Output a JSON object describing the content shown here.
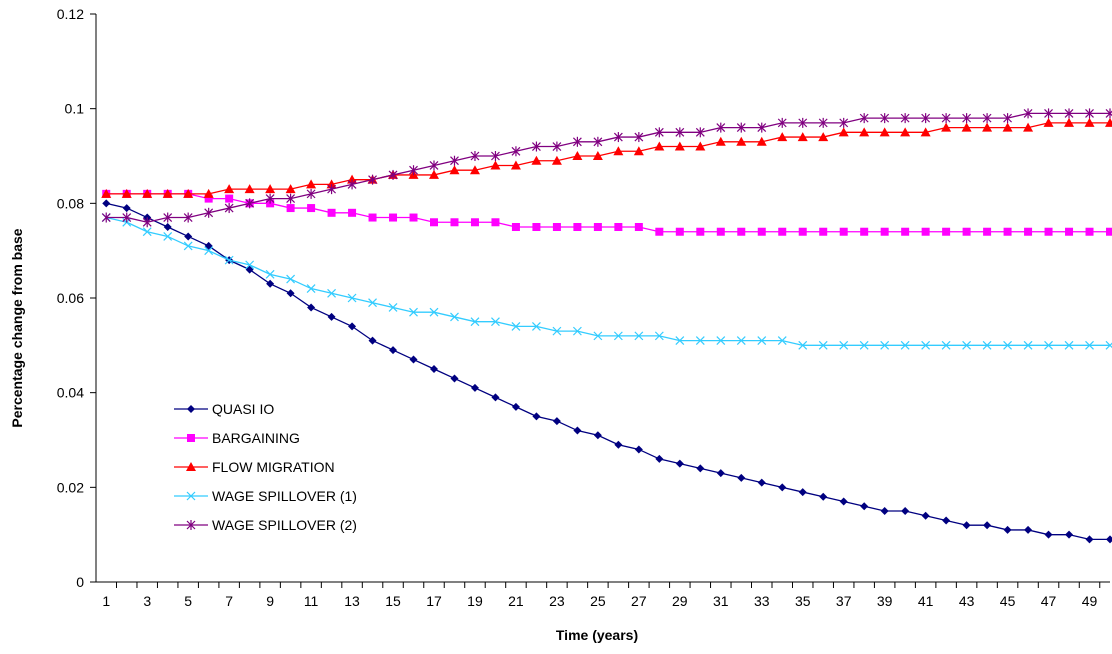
{
  "chart_data": {
    "type": "line",
    "title": "",
    "xlabel": "Time (years)",
    "ylabel": "Percentage change from base",
    "ylim": [
      0,
      0.12
    ],
    "yticks": [
      "0",
      "0.02",
      "0.04",
      "0.06",
      "0.08",
      "0.1",
      "0.12"
    ],
    "xlim": [
      1,
      50
    ],
    "xticks": [
      "1",
      "3",
      "5",
      "7",
      "9",
      "11",
      "13",
      "15",
      "17",
      "19",
      "21",
      "23",
      "25",
      "27",
      "29",
      "31",
      "33",
      "35",
      "37",
      "39",
      "41",
      "43",
      "45",
      "47",
      "49"
    ],
    "grid": false,
    "legend_position": "left-bottom",
    "x": [
      1,
      2,
      3,
      4,
      5,
      6,
      7,
      8,
      9,
      10,
      11,
      12,
      13,
      14,
      15,
      16,
      17,
      18,
      19,
      20,
      21,
      22,
      23,
      24,
      25,
      26,
      27,
      28,
      29,
      30,
      31,
      32,
      33,
      34,
      35,
      36,
      37,
      38,
      39,
      40,
      41,
      42,
      43,
      44,
      45,
      46,
      47,
      48,
      49,
      50
    ],
    "series": [
      {
        "name": "QUASI IO",
        "color": "#000080",
        "marker": "diamond",
        "values": [
          0.08,
          0.079,
          0.077,
          0.075,
          0.073,
          0.071,
          0.068,
          0.066,
          0.063,
          0.061,
          0.058,
          0.056,
          0.054,
          0.051,
          0.049,
          0.047,
          0.045,
          0.043,
          0.041,
          0.039,
          0.037,
          0.035,
          0.034,
          0.032,
          0.031,
          0.029,
          0.028,
          0.026,
          0.025,
          0.024,
          0.023,
          0.022,
          0.021,
          0.02,
          0.019,
          0.018,
          0.017,
          0.016,
          0.015,
          0.015,
          0.014,
          0.013,
          0.012,
          0.012,
          0.011,
          0.011,
          0.01,
          0.01,
          0.009,
          0.009
        ]
      },
      {
        "name": "BARGAINING",
        "color": "#ff00ff",
        "marker": "square",
        "values": [
          0.082,
          0.082,
          0.082,
          0.082,
          0.082,
          0.081,
          0.081,
          0.08,
          0.08,
          0.079,
          0.079,
          0.078,
          0.078,
          0.077,
          0.077,
          0.077,
          0.076,
          0.076,
          0.076,
          0.076,
          0.075,
          0.075,
          0.075,
          0.075,
          0.075,
          0.075,
          0.075,
          0.074,
          0.074,
          0.074,
          0.074,
          0.074,
          0.074,
          0.074,
          0.074,
          0.074,
          0.074,
          0.074,
          0.074,
          0.074,
          0.074,
          0.074,
          0.074,
          0.074,
          0.074,
          0.074,
          0.074,
          0.074,
          0.074,
          0.074
        ]
      },
      {
        "name": "FLOW MIGRATION",
        "color": "#ff0000",
        "marker": "triangle",
        "values": [
          0.082,
          0.082,
          0.082,
          0.082,
          0.082,
          0.082,
          0.083,
          0.083,
          0.083,
          0.083,
          0.084,
          0.084,
          0.085,
          0.085,
          0.086,
          0.086,
          0.086,
          0.087,
          0.087,
          0.088,
          0.088,
          0.089,
          0.089,
          0.09,
          0.09,
          0.091,
          0.091,
          0.092,
          0.092,
          0.092,
          0.093,
          0.093,
          0.093,
          0.094,
          0.094,
          0.094,
          0.095,
          0.095,
          0.095,
          0.095,
          0.095,
          0.096,
          0.096,
          0.096,
          0.096,
          0.096,
          0.097,
          0.097,
          0.097,
          0.097
        ]
      },
      {
        "name": "WAGE SPILLOVER (1)",
        "color": "#33ccff",
        "marker": "x",
        "values": [
          0.077,
          0.076,
          0.074,
          0.073,
          0.071,
          0.07,
          0.068,
          0.067,
          0.065,
          0.064,
          0.062,
          0.061,
          0.06,
          0.059,
          0.058,
          0.057,
          0.057,
          0.056,
          0.055,
          0.055,
          0.054,
          0.054,
          0.053,
          0.053,
          0.052,
          0.052,
          0.052,
          0.052,
          0.051,
          0.051,
          0.051,
          0.051,
          0.051,
          0.051,
          0.05,
          0.05,
          0.05,
          0.05,
          0.05,
          0.05,
          0.05,
          0.05,
          0.05,
          0.05,
          0.05,
          0.05,
          0.05,
          0.05,
          0.05,
          0.05
        ]
      },
      {
        "name": "WAGE SPILLOVER (2)",
        "color": "#800080",
        "marker": "star",
        "values": [
          0.077,
          0.077,
          0.076,
          0.077,
          0.077,
          0.078,
          0.079,
          0.08,
          0.081,
          0.081,
          0.082,
          0.083,
          0.084,
          0.085,
          0.086,
          0.087,
          0.088,
          0.089,
          0.09,
          0.09,
          0.091,
          0.092,
          0.092,
          0.093,
          0.093,
          0.094,
          0.094,
          0.095,
          0.095,
          0.095,
          0.096,
          0.096,
          0.096,
          0.097,
          0.097,
          0.097,
          0.097,
          0.098,
          0.098,
          0.098,
          0.098,
          0.098,
          0.098,
          0.098,
          0.098,
          0.099,
          0.099,
          0.099,
          0.099,
          0.099
        ]
      }
    ]
  }
}
